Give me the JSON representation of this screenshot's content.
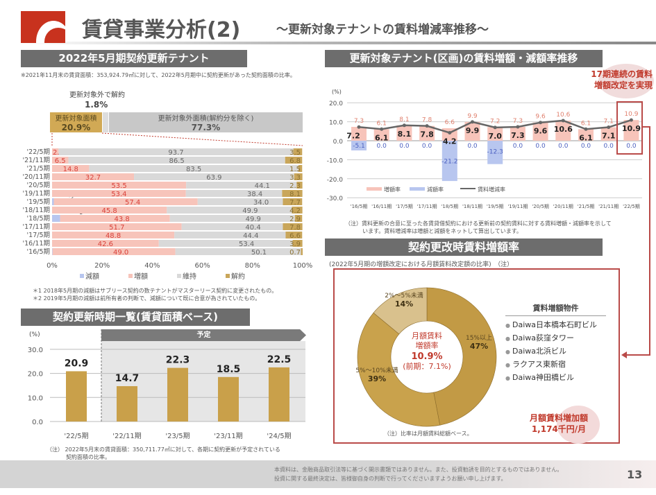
{
  "header": {
    "title": "賃貸事業分析(2)",
    "subtitle": "～更新対象テナントの賃料増減率推移～"
  },
  "left_top": {
    "section_title": "2022年5月期契約更新テナント",
    "note": "※2021年11月末の賃貸面積：353,924.79㎡に対して、2022年5月期中に契約更新があった契約面積の比率。",
    "cancel_outside_label": "更新対象外で解約",
    "cancel_outside_value": "1.8%",
    "target_label": "更新対象面積",
    "target_value": "20.9%",
    "nontarget_label": "更新対象外面積(解約分を除く)",
    "nontarget_value": "77.3%",
    "footnote1": "＊1 2018年5月期の減額はサブリース契約の数テナントがマスターリース契約に変更されたもの。",
    "footnote2": "＊2 2019年5月期の減額は前所有者の判断で、減額について既に合意が為されていたもの。",
    "mark1": "*1",
    "mark2": "*2"
  },
  "left_bottom": {
    "section_title": "契約更新時期一覧(賃貸面積ベース)",
    "planned_label": "予定",
    "unit": "(%)",
    "note1": "（注）  2022年5月末の賃貸面積：350,711.77㎡に対して、各期に契約更新が予定されている",
    "note2": "契約面積の比率。"
  },
  "right_top": {
    "section_title": "更新対象テナント(区画)の賃料増額・減額率推移",
    "callout_line1": "17期連続の賃料",
    "callout_line2": "増額改定を実現",
    "unit": "(%)",
    "note1": "（注）賃料更新の合意に至った各賃貸借契約における更新前の契約賃料に対する賃料増額・減額率を示して",
    "note2": "います。賃料増減率は増額と減額をネットして算出しています。"
  },
  "right_bottom": {
    "section_title": "契約更改時賃料増額率",
    "subtitle": "(2022年5月期の増額改定における月額賃料改定額の比率)　（注）",
    "center_line1": "月額賃料",
    "center_line2": "増額率",
    "center_value": "10.9%",
    "center_prev": "(前期：7.1%)",
    "properties_title": "賃料増額物件",
    "properties": [
      "Daiwa日本橋本石町ビル",
      "Daiwa荻窪タワー",
      "Daiwa北浜ビル",
      "ラクアス東新宿",
      "Daiwa神田橋ビル"
    ],
    "increase_label": "月額賃料増加額",
    "increase_value": "1,174千円/月",
    "note": "（注）比率は月額賃料総額ベース。"
  },
  "footer": {
    "disclaimer1": "本資料は、金融商品取引法等に基づく開示書類ではありません。また、投資勧誘を目的とするものではありません。",
    "disclaimer2": "投資に関する最終決定は、皆様御自身の判断で行ってくださいますようお願い申し上げます。",
    "page": "13"
  },
  "colors": {
    "brand_red": "#c8321e",
    "increase": "#f7c4ba",
    "decrease": "#b8c6ef",
    "maintain": "#d9d9d9",
    "cancel": "#c9a65a",
    "gold": "#c9a04a",
    "accent_text": "#c0392b"
  },
  "chart_data": [
    {
      "type": "bar",
      "orientation": "horizontal",
      "stacked": true,
      "percent": true,
      "categories": [
        "'22/5期",
        "'21/11期",
        "'21/5期",
        "'20/11期",
        "'20/5期",
        "'19/11期",
        "'19/5期",
        "'18/11期",
        "'18/5期",
        "'17/11期",
        "'17/5期",
        "'16/11期",
        "'16/5期"
      ],
      "series": [
        {
          "name": "減額",
          "values": [
            0,
            0,
            0,
            0,
            0,
            0,
            0.7,
            0,
            3.2,
            0,
            0,
            0,
            0.2
          ]
        },
        {
          "name": "増額",
          "values": [
            2.6,
            6.5,
            14.8,
            32.7,
            53.5,
            53.4,
            57.4,
            45.8,
            43.8,
            51.7,
            48.8,
            42.6,
            49.0
          ]
        },
        {
          "name": "維持",
          "values": [
            93.7,
            86.5,
            83.5,
            63.9,
            44.1,
            38.4,
            34.0,
            49.9,
            49.9,
            40.4,
            44.4,
            53.4,
            50.1
          ]
        },
        {
          "name": "解約",
          "values": [
            3.5,
            6.8,
            1.5,
            3.3,
            2.3,
            8.1,
            7.7,
            4.2,
            2.9,
            7.8,
            6.6,
            3.9,
            0.7
          ]
        }
      ],
      "xticks": [
        "0%",
        "20%",
        "40%",
        "60%",
        "80%",
        "100%"
      ],
      "xlim": [
        0,
        100
      ],
      "legend": "bottom"
    },
    {
      "type": "bar",
      "categories": [
        "'16/5期",
        "'16/11期",
        "'17/5期",
        "'17/11期",
        "'18/5期",
        "'18/11期",
        "'19/5期",
        "'19/11期",
        "'20/5期",
        "'20/11期",
        "'21/5期",
        "'21/11期",
        "'22/5期"
      ],
      "series": [
        {
          "name": "増額率",
          "type": "bar",
          "values": [
            7.3,
            6.1,
            8.1,
            7.8,
            6.6,
            9.9,
            7.2,
            7.3,
            9.6,
            10.6,
            6.1,
            7.1,
            10.9
          ]
        },
        {
          "name": "減額率",
          "type": "bar",
          "values": [
            -5.1,
            0.0,
            0.0,
            0.0,
            -21.2,
            0.0,
            -12.3,
            0.0,
            0.0,
            0.0,
            0.0,
            0.0,
            0.0
          ]
        },
        {
          "name": "賃料増減率",
          "type": "line",
          "values": [
            7.2,
            6.1,
            8.1,
            7.8,
            4.2,
            9.9,
            7.0,
            7.3,
            9.6,
            10.6,
            6.1,
            7.1,
            10.9
          ]
        }
      ],
      "ylabel": "(%)",
      "ylim": [
        -30,
        20
      ],
      "yticks": [
        "20.0",
        "10.0",
        "0.0",
        "-10.0",
        "-20.0",
        "-30.0"
      ],
      "grid": true,
      "legend": "bottom-left"
    },
    {
      "type": "bar",
      "categories": [
        "'22/5期",
        "'22/11期",
        "'23/5期",
        "'23/11期",
        "'24/5期"
      ],
      "values": [
        20.9,
        14.7,
        22.3,
        18.5,
        22.5
      ],
      "ylabel": "(%)",
      "ylim": [
        0,
        30
      ],
      "yticks": [
        "30.0",
        "20.0",
        "10.0",
        "0.0"
      ],
      "grid": true
    },
    {
      "type": "pie",
      "donut": true,
      "slices": [
        {
          "label": "15%以上",
          "value": 47,
          "text": "47%"
        },
        {
          "label": "5%～10%未満",
          "value": 39,
          "text": "39%"
        },
        {
          "label": "2%～5%未満",
          "value": 14,
          "text": "14%"
        }
      ]
    }
  ]
}
